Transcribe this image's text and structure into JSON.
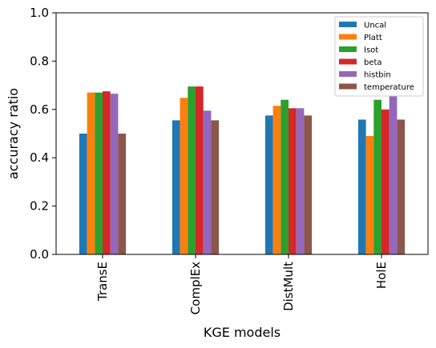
{
  "chart_data": {
    "type": "bar",
    "xlabel": "KGE models",
    "ylabel": "accuracy ratio",
    "ylim": [
      0,
      1.0
    ],
    "yticks": [
      "0.0",
      "0.2",
      "0.4",
      "0.6",
      "0.8",
      "1.0"
    ],
    "categories": [
      "TransE",
      "ComplEx",
      "DistMult",
      "HolE"
    ],
    "series": [
      {
        "name": "Uncal",
        "color": "#1f77b4",
        "values": [
          0.5,
          0.555,
          0.575,
          0.558
        ]
      },
      {
        "name": "Platt",
        "color": "#ff7f0e",
        "values": [
          0.67,
          0.648,
          0.615,
          0.49
        ]
      },
      {
        "name": "Isot",
        "color": "#2ca02c",
        "values": [
          0.67,
          0.695,
          0.64,
          0.64
        ]
      },
      {
        "name": "beta",
        "color": "#d62728",
        "values": [
          0.675,
          0.695,
          0.605,
          0.6
        ]
      },
      {
        "name": "histbin",
        "color": "#9467bd",
        "values": [
          0.665,
          0.595,
          0.605,
          0.73
        ]
      },
      {
        "name": "temperature",
        "color": "#8c564b",
        "values": [
          0.5,
          0.555,
          0.575,
          0.558
        ]
      }
    ],
    "legend_position": "top-right",
    "grid": false
  }
}
